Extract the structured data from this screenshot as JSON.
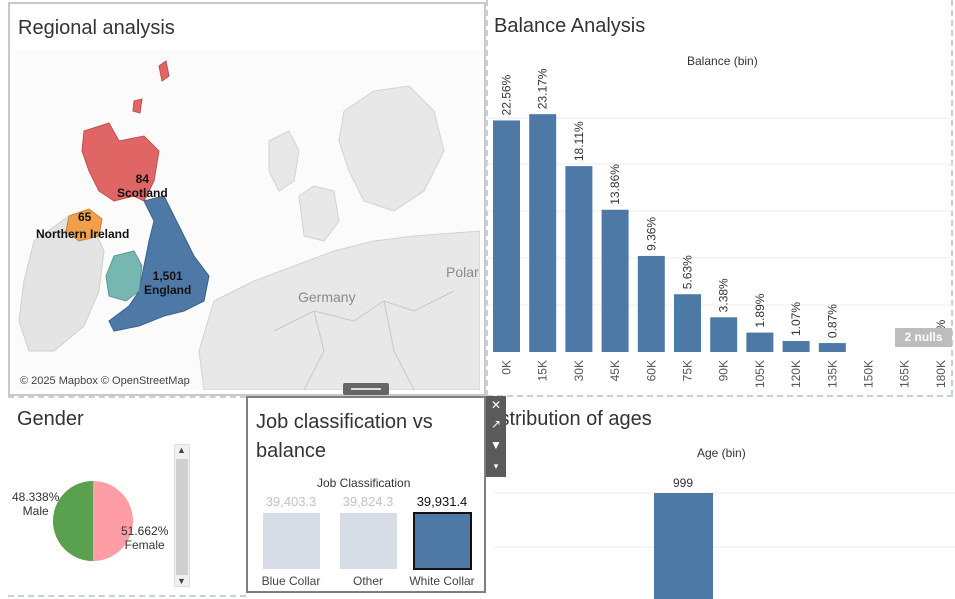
{
  "regional": {
    "title": "Regional analysis",
    "credit": "© 2025 Mapbox © OpenStreetMap",
    "countries": [
      "Germany",
      "Polar"
    ],
    "regions": [
      {
        "value": "84",
        "name": "Scotland",
        "color": "#e06666"
      },
      {
        "value": "65",
        "name": "Northern Ireland",
        "color": "#f0a04b"
      },
      {
        "value": "1,501",
        "name": "England",
        "color": "#4e79a7"
      },
      {
        "value": "",
        "name": "Wales",
        "color": "#76b7b2"
      }
    ]
  },
  "balance": {
    "title": "Balance Analysis",
    "header": "Balance (bin)",
    "nulls_badge": "2 nulls"
  },
  "gender": {
    "title": "Gender",
    "slices": [
      {
        "label": "48.338%",
        "name": "Male",
        "color": "#59a14f"
      },
      {
        "label": "51.662%",
        "name": "Female",
        "color": "#ff9da7"
      }
    ]
  },
  "job": {
    "title_line1": "Job classification vs",
    "title_line2": "balance",
    "header": "Job Classification"
  },
  "ages": {
    "title": "istribution of ages",
    "header": "Age (bin)"
  },
  "chart_data": [
    {
      "type": "bar",
      "categories": [
        "0K",
        "15K",
        "30K",
        "45K",
        "60K",
        "75K",
        "90K",
        "105K",
        "120K",
        "135K",
        "150K",
        "165K",
        "180K"
      ],
      "values": [
        22.56,
        23.17,
        18.11,
        13.86,
        9.36,
        5.63,
        3.38,
        1.89,
        1.07,
        0.87,
        0,
        0,
        0.0
      ],
      "labels": [
        "22.56%",
        "23.17%",
        "18.11%",
        "13.86%",
        "9.36%",
        "5.63%",
        "3.38%",
        "1.89%",
        "1.07%",
        "0.87%",
        "",
        "",
        "0.0%"
      ],
      "title": "Balance (bin)",
      "ylim": [
        0,
        25
      ]
    },
    {
      "type": "pie",
      "categories": [
        "Male",
        "Female"
      ],
      "values": [
        48.338,
        51.662
      ]
    },
    {
      "type": "bar",
      "categories": [
        "Blue Collar",
        "Other",
        "White Collar"
      ],
      "values": [
        39403.3,
        39824.3,
        39931.4
      ],
      "labels": [
        "39,403.3",
        "39,824.3",
        "39,931.4"
      ],
      "title": "Job Classification",
      "selected": "White Collar"
    },
    {
      "type": "bar",
      "categories": [
        ""
      ],
      "values": [
        999
      ],
      "labels": [
        "999"
      ],
      "title": "Age (bin)"
    }
  ]
}
